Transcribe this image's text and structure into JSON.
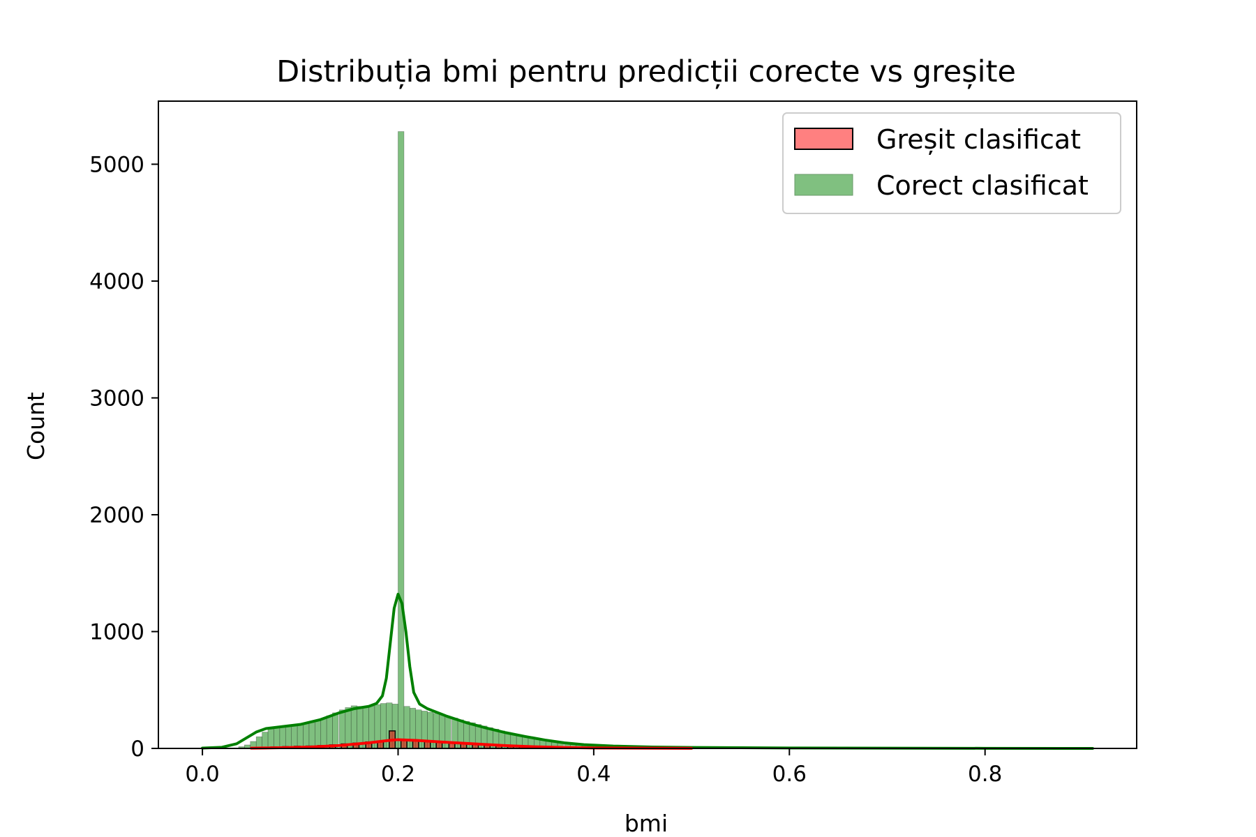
{
  "chart_data": {
    "type": "bar",
    "title": "Distribuția bmi pentru predicții corecte vs greșite",
    "xlabel": "bmi",
    "ylabel": "Count",
    "xlim": [
      -0.045,
      0.955
    ],
    "ylim": [
      0,
      5540
    ],
    "x_ticks": [
      0.0,
      0.2,
      0.4,
      0.6,
      0.8
    ],
    "x_tick_labels": [
      "0.0",
      "0.2",
      "0.4",
      "0.6",
      "0.8"
    ],
    "y_ticks": [
      0,
      1000,
      2000,
      3000,
      4000,
      5000
    ],
    "y_tick_labels": [
      "0",
      "1000",
      "2000",
      "3000",
      "4000",
      "5000"
    ],
    "grid": false,
    "legend_position": "top-right",
    "bin_width": 0.00606,
    "series": [
      {
        "name": "Greșit clasificat",
        "color": "#ff0000",
        "fill_alpha": 0.5,
        "outline": true,
        "bins": [
          {
            "x": 0.06,
            "y": 8
          },
          {
            "x": 0.073,
            "y": 12
          },
          {
            "x": 0.085,
            "y": 15
          },
          {
            "x": 0.097,
            "y": 18
          },
          {
            "x": 0.109,
            "y": 20
          },
          {
            "x": 0.121,
            "y": 24
          },
          {
            "x": 0.133,
            "y": 30
          },
          {
            "x": 0.145,
            "y": 38
          },
          {
            "x": 0.157,
            "y": 45
          },
          {
            "x": 0.17,
            "y": 55
          },
          {
            "x": 0.182,
            "y": 62
          },
          {
            "x": 0.194,
            "y": 150
          },
          {
            "x": 0.206,
            "y": 70
          },
          {
            "x": 0.218,
            "y": 64
          },
          {
            "x": 0.23,
            "y": 58
          },
          {
            "x": 0.242,
            "y": 52
          },
          {
            "x": 0.255,
            "y": 46
          },
          {
            "x": 0.267,
            "y": 40
          },
          {
            "x": 0.279,
            "y": 34
          },
          {
            "x": 0.291,
            "y": 28
          },
          {
            "x": 0.303,
            "y": 22
          },
          {
            "x": 0.315,
            "y": 18
          },
          {
            "x": 0.327,
            "y": 14
          },
          {
            "x": 0.34,
            "y": 10
          },
          {
            "x": 0.352,
            "y": 8
          },
          {
            "x": 0.364,
            "y": 6
          },
          {
            "x": 0.376,
            "y": 4
          }
        ],
        "kde": [
          {
            "x": 0.05,
            "y": 2
          },
          {
            "x": 0.08,
            "y": 6
          },
          {
            "x": 0.11,
            "y": 12
          },
          {
            "x": 0.14,
            "y": 25
          },
          {
            "x": 0.17,
            "y": 48
          },
          {
            "x": 0.19,
            "y": 68
          },
          {
            "x": 0.2,
            "y": 75
          },
          {
            "x": 0.22,
            "y": 68
          },
          {
            "x": 0.25,
            "y": 52
          },
          {
            "x": 0.28,
            "y": 38
          },
          {
            "x": 0.31,
            "y": 24
          },
          {
            "x": 0.34,
            "y": 14
          },
          {
            "x": 0.37,
            "y": 8
          },
          {
            "x": 0.4,
            "y": 4
          },
          {
            "x": 0.45,
            "y": 2
          },
          {
            "x": 0.5,
            "y": 1
          }
        ]
      },
      {
        "name": "Corect clasificat",
        "color": "#008000",
        "fill_alpha": 0.5,
        "outline": false,
        "bins": [
          {
            "x": 0.04,
            "y": 15
          },
          {
            "x": 0.046,
            "y": 30
          },
          {
            "x": 0.052,
            "y": 60
          },
          {
            "x": 0.058,
            "y": 100
          },
          {
            "x": 0.064,
            "y": 140
          },
          {
            "x": 0.07,
            "y": 165
          },
          {
            "x": 0.076,
            "y": 180
          },
          {
            "x": 0.082,
            "y": 188
          },
          {
            "x": 0.088,
            "y": 192
          },
          {
            "x": 0.094,
            "y": 196
          },
          {
            "x": 0.1,
            "y": 202
          },
          {
            "x": 0.106,
            "y": 210
          },
          {
            "x": 0.112,
            "y": 220
          },
          {
            "x": 0.118,
            "y": 235
          },
          {
            "x": 0.124,
            "y": 255
          },
          {
            "x": 0.13,
            "y": 280
          },
          {
            "x": 0.136,
            "y": 305
          },
          {
            "x": 0.143,
            "y": 330
          },
          {
            "x": 0.149,
            "y": 350
          },
          {
            "x": 0.155,
            "y": 365
          },
          {
            "x": 0.161,
            "y": 360
          },
          {
            "x": 0.167,
            "y": 355
          },
          {
            "x": 0.173,
            "y": 362
          },
          {
            "x": 0.179,
            "y": 375
          },
          {
            "x": 0.185,
            "y": 385
          },
          {
            "x": 0.191,
            "y": 390
          },
          {
            "x": 0.197,
            "y": 380
          },
          {
            "x": 0.203,
            "y": 5280
          },
          {
            "x": 0.209,
            "y": 360
          },
          {
            "x": 0.215,
            "y": 345
          },
          {
            "x": 0.221,
            "y": 330
          },
          {
            "x": 0.227,
            "y": 320
          },
          {
            "x": 0.233,
            "y": 310
          },
          {
            "x": 0.239,
            "y": 300
          },
          {
            "x": 0.245,
            "y": 285
          },
          {
            "x": 0.251,
            "y": 272
          },
          {
            "x": 0.258,
            "y": 260
          },
          {
            "x": 0.264,
            "y": 245
          },
          {
            "x": 0.27,
            "y": 232
          },
          {
            "x": 0.276,
            "y": 220
          },
          {
            "x": 0.282,
            "y": 205
          },
          {
            "x": 0.288,
            "y": 192
          },
          {
            "x": 0.294,
            "y": 178
          },
          {
            "x": 0.3,
            "y": 165
          },
          {
            "x": 0.306,
            "y": 150
          },
          {
            "x": 0.312,
            "y": 138
          },
          {
            "x": 0.318,
            "y": 125
          },
          {
            "x": 0.324,
            "y": 112
          },
          {
            "x": 0.33,
            "y": 100
          },
          {
            "x": 0.336,
            "y": 88
          },
          {
            "x": 0.342,
            "y": 77
          },
          {
            "x": 0.348,
            "y": 68
          },
          {
            "x": 0.354,
            "y": 60
          },
          {
            "x": 0.36,
            "y": 52
          },
          {
            "x": 0.366,
            "y": 45
          },
          {
            "x": 0.373,
            "y": 38
          },
          {
            "x": 0.379,
            "y": 32
          },
          {
            "x": 0.385,
            "y": 27
          },
          {
            "x": 0.391,
            "y": 22
          },
          {
            "x": 0.397,
            "y": 18
          },
          {
            "x": 0.403,
            "y": 15
          },
          {
            "x": 0.409,
            "y": 12
          },
          {
            "x": 0.415,
            "y": 10
          },
          {
            "x": 0.421,
            "y": 8
          },
          {
            "x": 0.427,
            "y": 7
          },
          {
            "x": 0.433,
            "y": 6
          },
          {
            "x": 0.439,
            "y": 5
          },
          {
            "x": 0.445,
            "y": 4
          },
          {
            "x": 0.451,
            "y": 3
          },
          {
            "x": 0.457,
            "y": 3
          },
          {
            "x": 0.463,
            "y": 2
          },
          {
            "x": 0.469,
            "y": 2
          },
          {
            "x": 0.475,
            "y": 2
          },
          {
            "x": 0.481,
            "y": 1
          },
          {
            "x": 0.487,
            "y": 1
          }
        ],
        "kde": [
          {
            "x": 0.0,
            "y": 3
          },
          {
            "x": 0.02,
            "y": 10
          },
          {
            "x": 0.035,
            "y": 40
          },
          {
            "x": 0.045,
            "y": 90
          },
          {
            "x": 0.055,
            "y": 140
          },
          {
            "x": 0.065,
            "y": 170
          },
          {
            "x": 0.08,
            "y": 185
          },
          {
            "x": 0.1,
            "y": 205
          },
          {
            "x": 0.12,
            "y": 245
          },
          {
            "x": 0.14,
            "y": 305
          },
          {
            "x": 0.155,
            "y": 340
          },
          {
            "x": 0.17,
            "y": 360
          },
          {
            "x": 0.178,
            "y": 385
          },
          {
            "x": 0.184,
            "y": 450
          },
          {
            "x": 0.188,
            "y": 600
          },
          {
            "x": 0.192,
            "y": 900
          },
          {
            "x": 0.196,
            "y": 1200
          },
          {
            "x": 0.2,
            "y": 1320
          },
          {
            "x": 0.204,
            "y": 1240
          },
          {
            "x": 0.208,
            "y": 1000
          },
          {
            "x": 0.212,
            "y": 700
          },
          {
            "x": 0.216,
            "y": 480
          },
          {
            "x": 0.222,
            "y": 380
          },
          {
            "x": 0.23,
            "y": 340
          },
          {
            "x": 0.25,
            "y": 275
          },
          {
            "x": 0.27,
            "y": 220
          },
          {
            "x": 0.29,
            "y": 175
          },
          {
            "x": 0.31,
            "y": 135
          },
          {
            "x": 0.33,
            "y": 102
          },
          {
            "x": 0.35,
            "y": 72
          },
          {
            "x": 0.37,
            "y": 48
          },
          {
            "x": 0.39,
            "y": 32
          },
          {
            "x": 0.42,
            "y": 20
          },
          {
            "x": 0.46,
            "y": 12
          },
          {
            "x": 0.5,
            "y": 8
          },
          {
            "x": 0.6,
            "y": 4
          },
          {
            "x": 0.7,
            "y": 2
          },
          {
            "x": 0.8,
            "y": 1
          },
          {
            "x": 0.91,
            "y": 0
          }
        ]
      }
    ]
  }
}
